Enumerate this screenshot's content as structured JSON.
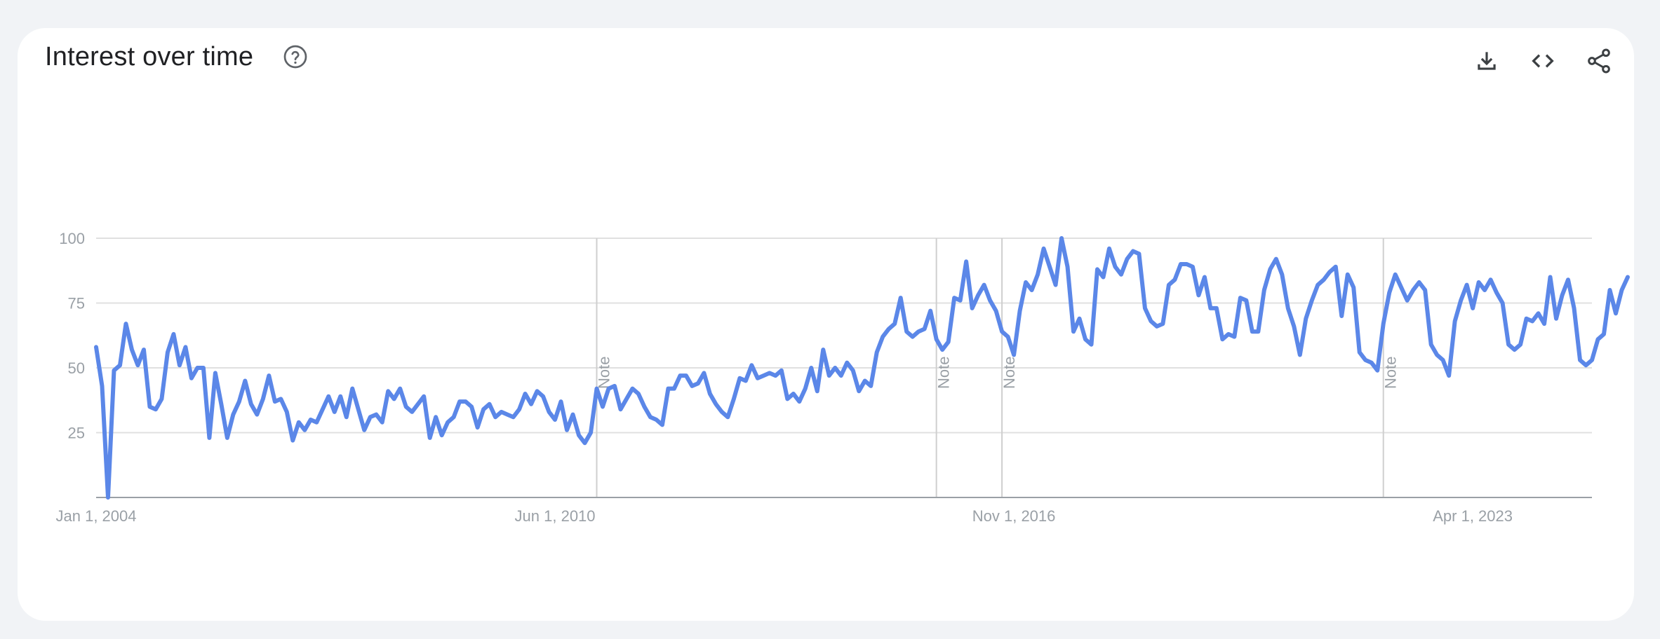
{
  "header": {
    "title": "Interest over time",
    "help_icon": "help-circle-icon",
    "actions": [
      {
        "name": "download-button",
        "icon": "download-icon"
      },
      {
        "name": "embed-button",
        "icon": "code-icon"
      },
      {
        "name": "share-button",
        "icon": "share-icon"
      }
    ]
  },
  "colors": {
    "line": "#5b87e8",
    "grid": "#e0e0e0",
    "axis": "#9aa0a6",
    "note_line": "#cfcfcf",
    "title": "#202124",
    "icon": "#5f6368"
  },
  "chart_data": {
    "type": "line",
    "title": "Interest over time",
    "xlabel": "",
    "ylabel": "",
    "ylim": [
      0,
      100
    ],
    "yticks": [
      25,
      50,
      75,
      100
    ],
    "grid": true,
    "x_start": "2004-01",
    "x_end": "2024-12",
    "frequency": "monthly",
    "xtick_labels": [
      {
        "date": "2004-01",
        "label": "Jan 1, 2004"
      },
      {
        "date": "2010-06",
        "label": "Jun 1, 2010"
      },
      {
        "date": "2016-11",
        "label": "Nov 1, 2016"
      },
      {
        "date": "2023-04",
        "label": "Apr 1, 2023"
      }
    ],
    "notes": [
      {
        "date": "2011-01",
        "label": "Note"
      },
      {
        "date": "2015-10",
        "label": "Note"
      },
      {
        "date": "2016-09",
        "label": "Note"
      },
      {
        "date": "2022-01",
        "label": "Note"
      }
    ],
    "series": [
      {
        "values": [
          58,
          43,
          0,
          49,
          51,
          67,
          57,
          51,
          57,
          35,
          34,
          38,
          56,
          63,
          51,
          58,
          46,
          50,
          50,
          23,
          48,
          36,
          23,
          32,
          37,
          45,
          36,
          32,
          38,
          47,
          37,
          38,
          33,
          22,
          29,
          26,
          30,
          29,
          34,
          39,
          33,
          39,
          31,
          42,
          34,
          26,
          31,
          32,
          29,
          41,
          38,
          42,
          35,
          33,
          36,
          39,
          23,
          31,
          24,
          29,
          31,
          37,
          37,
          35,
          27,
          34,
          36,
          31,
          33,
          32,
          31,
          34,
          40,
          36,
          41,
          39,
          33,
          30,
          37,
          26,
          32,
          24,
          21,
          25,
          42,
          35,
          42,
          43,
          34,
          38,
          42,
          40,
          35,
          31,
          30,
          28,
          42,
          42,
          47,
          47,
          43,
          44,
          48,
          40,
          36,
          33,
          31,
          38,
          46,
          45,
          51,
          46,
          47,
          48,
          47,
          49,
          38,
          40,
          37,
          42,
          50,
          41,
          57,
          47,
          50,
          47,
          52,
          49,
          41,
          45,
          43,
          56,
          62,
          65,
          67,
          77,
          64,
          62,
          64,
          65,
          72,
          61,
          57,
          60,
          77,
          76,
          91,
          73,
          78,
          82,
          76,
          72,
          64,
          62,
          55,
          72,
          83,
          80,
          86,
          96,
          89,
          82,
          100,
          89,
          64,
          69,
          61,
          59,
          88,
          85,
          96,
          89,
          86,
          92,
          95,
          94,
          73,
          68,
          66,
          67,
          82,
          84,
          90,
          90,
          89,
          78,
          85,
          73,
          73,
          61,
          63,
          62,
          77,
          76,
          64,
          64,
          80,
          88,
          92,
          86,
          73,
          66,
          55,
          69,
          76,
          82,
          84,
          87,
          89,
          70,
          86,
          81,
          56,
          53,
          52,
          49,
          67,
          79,
          86,
          81,
          76,
          80,
          83,
          80,
          59,
          55,
          53,
          47,
          68,
          76,
          82,
          73,
          83,
          80,
          84,
          79,
          75,
          59,
          57,
          59,
          69,
          68,
          71,
          67,
          85,
          69,
          78,
          84,
          73,
          53,
          51,
          53,
          61,
          63,
          80,
          71,
          80,
          85
        ]
      }
    ]
  }
}
